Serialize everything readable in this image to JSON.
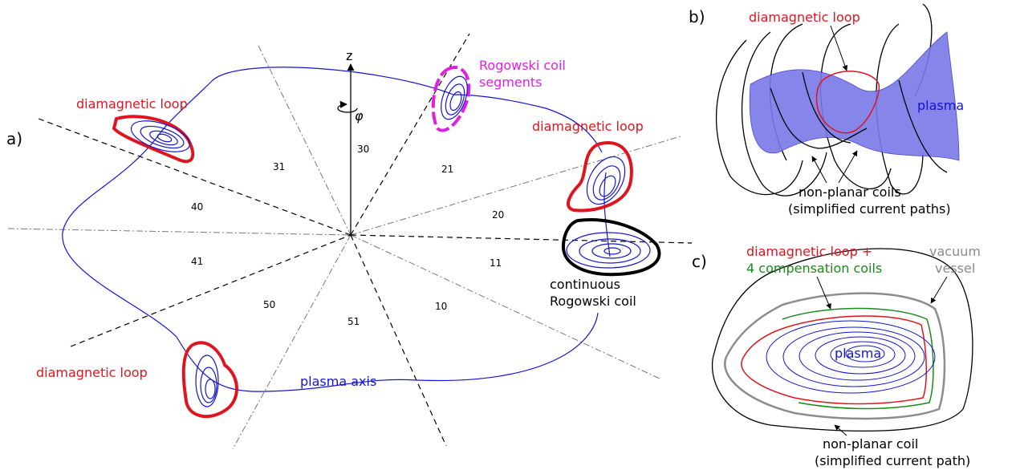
{
  "panel_a": {
    "label": "a)",
    "axis_label": "z",
    "angle_label": "φ",
    "sectors": [
      30,
      21,
      31,
      20,
      40,
      41,
      11,
      50,
      10,
      51
    ],
    "diamagnetic_loop_labels": [
      "diamagnetic loop",
      "diamagnetic loop",
      "diamagnetic loop"
    ],
    "rogowski_segments": [
      "Rogowski coil",
      "segments"
    ],
    "continuous_rogowski": [
      "continuous",
      "Rogowski coil"
    ],
    "plasma_axis": "plasma axis"
  },
  "panel_b": {
    "label": "b)",
    "diamagnetic_loop": "diamagnetic loop",
    "plasma": "plasma",
    "coils": [
      "non-planar coils",
      "(simplified current paths)"
    ]
  },
  "panel_c": {
    "label": "c)",
    "loop": [
      "diamagnetic loop +",
      "4 compensation coils"
    ],
    "vessel": [
      "vacuum",
      "vessel"
    ],
    "plasma": "plasma",
    "coil": [
      "non-planar coil",
      "(simplified current path)"
    ]
  }
}
